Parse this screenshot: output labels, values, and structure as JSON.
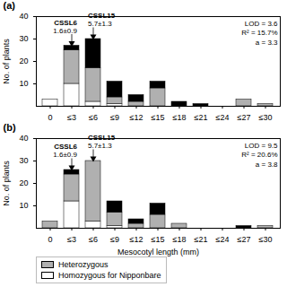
{
  "chart_data": [
    {
      "type": "bar",
      "title": "(a)",
      "stacked": true,
      "grid": false,
      "categories": [
        "0",
        "≤3",
        "≤6",
        "≤9",
        "≤12",
        "≤15",
        "≤18",
        "≤21",
        "≤24",
        "≤27",
        "≤30"
      ],
      "series": [
        {
          "name": "Homozygous for Nipponbare",
          "color": "#ffffff",
          "values": [
            3,
            10,
            2,
            1,
            0,
            0,
            0,
            0,
            0,
            0,
            0
          ]
        },
        {
          "name": "Heterozygous",
          "color": "#b0b0b0",
          "values": [
            0,
            15,
            15,
            3,
            2,
            8,
            0,
            0,
            0,
            3,
            1
          ]
        },
        {
          "color": "#000000",
          "values": [
            0,
            2,
            13,
            7,
            3,
            3,
            2,
            1,
            0,
            0,
            0
          ]
        }
      ],
      "y_label": "No. of plants",
      "ylim": [
        0,
        40
      ],
      "yticks": [
        10,
        20,
        30,
        40
      ],
      "annotations": [
        {
          "text": "LOD = 3.6"
        },
        {
          "text": "R² = 15.7%"
        },
        {
          "text": "a = 3.3"
        },
        {
          "text": "CSSL6",
          "subtext": "1.6±0.9",
          "category": "≤3"
        },
        {
          "text": "CSSL15",
          "subtext": "5.7±1.3",
          "category": "≤6"
        }
      ]
    },
    {
      "type": "bar",
      "title": "(b)",
      "stacked": true,
      "grid": false,
      "legend": "lower left",
      "categories": [
        "0",
        "≤3",
        "≤6",
        "≤9",
        "≤12",
        "≤15",
        "≤18",
        "≤21",
        "≤24",
        "≤27",
        "≤30"
      ],
      "series": [
        {
          "name": "Homozygous for Nipponbare",
          "color": "#ffffff",
          "values": [
            0,
            12,
            3,
            1,
            0,
            0,
            0,
            0,
            0,
            0,
            0
          ]
        },
        {
          "name": "Heterozygous",
          "color": "#b0b0b0",
          "values": [
            3,
            12,
            27,
            6,
            2,
            6,
            2,
            0,
            0,
            0,
            1
          ]
        },
        {
          "color": "#000000",
          "values": [
            0,
            2,
            0,
            5,
            2,
            5,
            0,
            0,
            0,
            1,
            0
          ]
        }
      ],
      "x_label": "Mesocotyl length (mm)",
      "y_label": "No. of plants",
      "ylim": [
        0,
        40
      ],
      "yticks": [
        10,
        20,
        30,
        40
      ],
      "annotations": [
        {
          "text": "LOD = 9.5"
        },
        {
          "text": "R² = 20.6%"
        },
        {
          "text": "a = 3.8"
        },
        {
          "text": "CSSL6",
          "subtext": "1.6±0.9",
          "category": "≤3"
        },
        {
          "text": "CSSL15",
          "subtext": "5.7±1.3",
          "category": "≤6"
        }
      ]
    }
  ]
}
